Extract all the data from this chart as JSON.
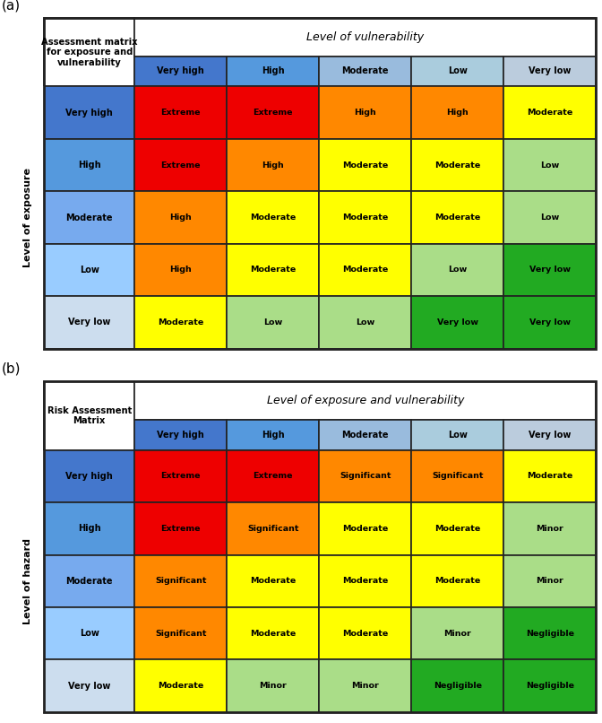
{
  "table_a": {
    "corner_text": "Assessment matrix\nfor exposure and\nvulnerability",
    "col_header_label": "Level of vulnerability",
    "row_header_label": "Level of exposure",
    "col_headers": [
      "Very high",
      "High",
      "Moderate",
      "Low",
      "Very low"
    ],
    "row_headers": [
      "Very high",
      "High",
      "Moderate",
      "Low",
      "Very low"
    ],
    "row_header_colors": [
      "#4477CC",
      "#5599DD",
      "#77AAEE",
      "#99CCFF",
      "#CCDDEE"
    ],
    "col_header_colors": [
      "#4477CC",
      "#5599DD",
      "#99BBDD",
      "#AACCDD",
      "#BBCCDD"
    ],
    "cell_texts": [
      [
        "Extreme",
        "Extreme",
        "High",
        "High",
        "Moderate"
      ],
      [
        "Extreme",
        "High",
        "Moderate",
        "Moderate",
        "Low"
      ],
      [
        "High",
        "Moderate",
        "Moderate",
        "Moderate",
        "Low"
      ],
      [
        "High",
        "Moderate",
        "Moderate",
        "Low",
        "Very low"
      ],
      [
        "Moderate",
        "Low",
        "Low",
        "Very low",
        "Very low"
      ]
    ],
    "cell_colors": [
      [
        "#EE0000",
        "#EE0000",
        "#FF8800",
        "#FF8800",
        "#FFFF00"
      ],
      [
        "#EE0000",
        "#FF8800",
        "#FFFF00",
        "#FFFF00",
        "#AADD88"
      ],
      [
        "#FF8800",
        "#FFFF00",
        "#FFFF00",
        "#FFFF00",
        "#AADD88"
      ],
      [
        "#FF8800",
        "#FFFF00",
        "#FFFF00",
        "#AADD88",
        "#22AA22"
      ],
      [
        "#FFFF00",
        "#AADD88",
        "#AADD88",
        "#22AA22",
        "#22AA22"
      ]
    ]
  },
  "table_b": {
    "corner_text": "Risk Assessment\nMatrix",
    "col_header_label": "Level of exposure and vulnerability",
    "row_header_label": "Level of hazard",
    "col_headers": [
      "Very high",
      "High",
      "Moderate",
      "Low",
      "Very low"
    ],
    "row_headers": [
      "Very high",
      "High",
      "Moderate",
      "Low",
      "Very low"
    ],
    "row_header_colors": [
      "#4477CC",
      "#5599DD",
      "#77AAEE",
      "#99CCFF",
      "#CCDDEE"
    ],
    "col_header_colors": [
      "#4477CC",
      "#5599DD",
      "#99BBDD",
      "#AACCDD",
      "#BBCCDD"
    ],
    "cell_texts": [
      [
        "Extreme",
        "Extreme",
        "Significant",
        "Significant",
        "Moderate"
      ],
      [
        "Extreme",
        "Significant",
        "Moderate",
        "Moderate",
        "Minor"
      ],
      [
        "Significant",
        "Moderate",
        "Moderate",
        "Moderate",
        "Minor"
      ],
      [
        "Significant",
        "Moderate",
        "Moderate",
        "Minor",
        "Negligible"
      ],
      [
        "Moderate",
        "Minor",
        "Minor",
        "Negligible",
        "Negligible"
      ]
    ],
    "cell_colors": [
      [
        "#EE0000",
        "#EE0000",
        "#FF8800",
        "#FF8800",
        "#FFFF00"
      ],
      [
        "#EE0000",
        "#FF8800",
        "#FFFF00",
        "#FFFF00",
        "#AADD88"
      ],
      [
        "#FF8800",
        "#FFFF00",
        "#FFFF00",
        "#FFFF00",
        "#AADD88"
      ],
      [
        "#FF8800",
        "#FFFF00",
        "#FFFF00",
        "#AADD88",
        "#22AA22"
      ],
      [
        "#FFFF00",
        "#AADD88",
        "#AADD88",
        "#22AA22",
        "#22AA22"
      ]
    ]
  },
  "border_color": "#222222",
  "corner_bg": "#FFFFFF",
  "row_label_bg": "#FFFFFF"
}
